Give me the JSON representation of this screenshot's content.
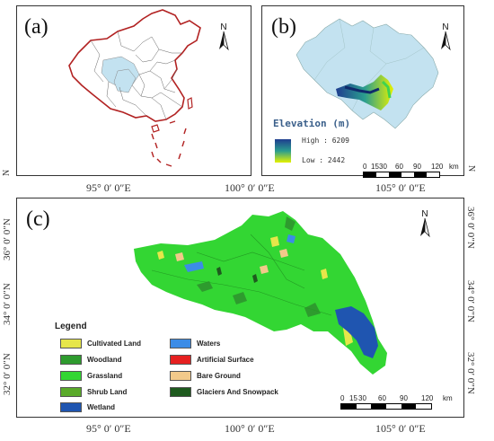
{
  "panels": {
    "a": {
      "label": "(a)"
    },
    "b": {
      "label": "(b)"
    },
    "c": {
      "label": "(c)"
    }
  },
  "north_label": "N",
  "longitude_ticks": [
    "95° 0′ 0″E",
    "100° 0′ 0″E",
    "105° 0′ 0″E"
  ],
  "latitude_ticks": [
    "36° 0′ 0″N",
    "34° 0′ 0″N",
    "32° 0′ 0″N"
  ],
  "elevation": {
    "title": "Elevation (m)",
    "high_label": "High : 6209",
    "low_label": "Low : 2442",
    "high_value": 6209,
    "low_value": 2442,
    "colors": {
      "high": "#1f3d8f",
      "mid": "#2a9d8f",
      "low": "#e6f200"
    }
  },
  "scale_bar": {
    "ticks": [
      "0",
      "15",
      "30",
      "60",
      "90",
      "120"
    ],
    "unit": "km"
  },
  "legend": {
    "title": "Legend",
    "items": [
      {
        "label": "Cultivated Land",
        "color": "#e6e64a"
      },
      {
        "label": "Woodland",
        "color": "#2e9b2e"
      },
      {
        "label": "Grassland",
        "color": "#33d633"
      },
      {
        "label": "Shrub Land",
        "color": "#5aaa2a"
      },
      {
        "label": "Wetland",
        "color": "#1f55b0"
      },
      {
        "label": "Waters",
        "color": "#3c8ce6"
      },
      {
        "label": "Artificial Surface",
        "color": "#e62020"
      },
      {
        "label": "Bare Ground",
        "color": "#f2c98a"
      },
      {
        "label": "Glaciers And Snowpack",
        "color": "#1e5a1e"
      }
    ]
  },
  "colors": {
    "study_area": "#c3e2f0",
    "china_border": "#b22222",
    "province_line": "#666666"
  }
}
